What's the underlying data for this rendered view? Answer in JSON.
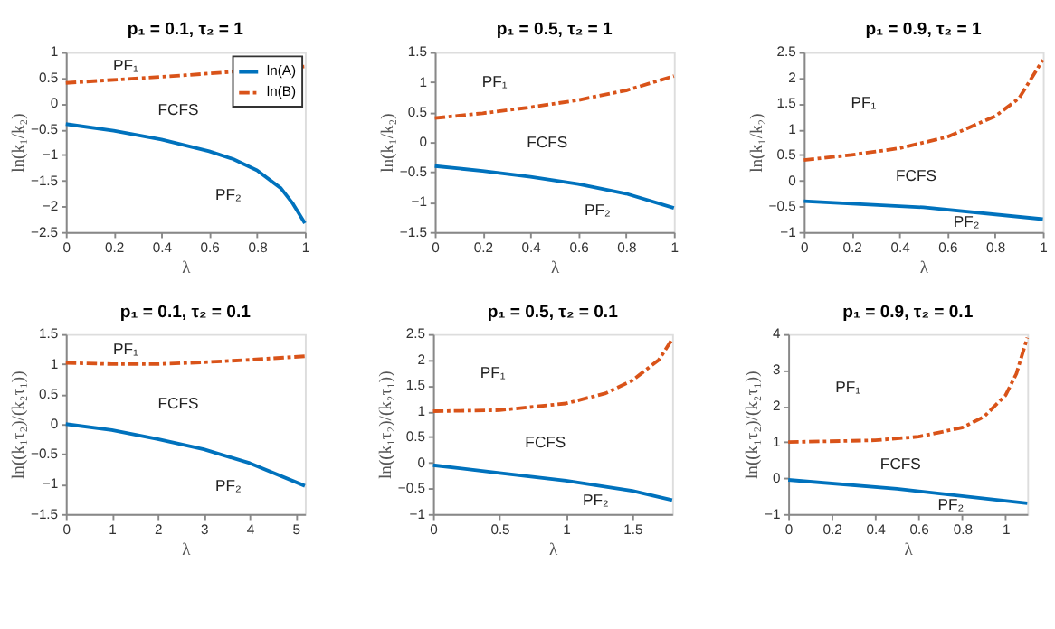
{
  "chart_data": [
    {
      "type": "line",
      "title": "p₁ = 0.1, τ₂ = 1",
      "xlabel": "λ",
      "ylabel": "ln(k₁/k₂)",
      "xlim": [
        0,
        1
      ],
      "xticks": [
        0,
        0.2,
        0.4,
        0.6,
        0.8,
        1
      ],
      "ylim": [
        -2.5,
        1
      ],
      "yticks": [
        -2.5,
        -2,
        -1.5,
        -1,
        -0.5,
        0,
        0.5,
        1
      ],
      "grid": false,
      "legend": "top right",
      "marker": "none",
      "series": [
        {
          "name": "ln(A)",
          "color": "#0072bd",
          "line_style": "solid",
          "x": [
            0,
            0.2,
            0.4,
            0.6,
            0.7,
            0.8,
            0.9,
            0.95,
            1
          ],
          "values": [
            -0.4,
            -0.53,
            -0.7,
            -0.93,
            -1.08,
            -1.3,
            -1.65,
            -1.95,
            -2.33
          ]
        },
        {
          "name": "ln(B)",
          "color": "#d95319",
          "line_style": "dashed",
          "x": [
            0,
            0.5,
            1
          ],
          "values": [
            0.4,
            0.55,
            0.72
          ]
        }
      ],
      "annotations": [
        "PF₁",
        "FCFS",
        "PF₂"
      ]
    },
    {
      "type": "line",
      "title": "p₁ = 0.5, τ₂ = 1",
      "xlabel": "λ",
      "ylabel": "ln(k₁/k₂)",
      "xlim": [
        0,
        1
      ],
      "xticks": [
        0,
        0.2,
        0.4,
        0.6,
        0.8,
        1
      ],
      "ylim": [
        -1.5,
        1.5
      ],
      "yticks": [
        -1.5,
        -1,
        -0.5,
        0,
        0.5,
        1,
        1.5
      ],
      "grid": false,
      "marker": "none",
      "series": [
        {
          "color": "#0072bd",
          "line_style": "solid",
          "x": [
            0,
            0.2,
            0.4,
            0.6,
            0.8,
            1
          ],
          "values": [
            -0.4,
            -0.48,
            -0.58,
            -0.7,
            -0.86,
            -1.1
          ]
        },
        {
          "color": "#d95319",
          "line_style": "dashed",
          "x": [
            0,
            0.2,
            0.4,
            0.6,
            0.8,
            1
          ],
          "values": [
            0.4,
            0.48,
            0.58,
            0.7,
            0.86,
            1.1
          ]
        }
      ],
      "annotations": [
        "PF₁",
        "FCFS",
        "PF₂"
      ]
    },
    {
      "type": "line",
      "title": "p₁ = 0.9, τ₂ = 1",
      "xlabel": "λ",
      "ylabel": "ln(k₁/k₂)",
      "xlim": [
        0,
        1
      ],
      "xticks": [
        0,
        0.2,
        0.4,
        0.6,
        0.8,
        1
      ],
      "ylim": [
        -1,
        2.5
      ],
      "yticks": [
        -1,
        -0.5,
        0,
        0.5,
        1,
        1.5,
        2,
        2.5
      ],
      "grid": false,
      "marker": "none",
      "series": [
        {
          "color": "#0072bd",
          "line_style": "solid",
          "x": [
            0,
            0.5,
            1
          ],
          "values": [
            -0.4,
            -0.52,
            -0.75
          ]
        },
        {
          "color": "#d95319",
          "line_style": "dashed",
          "x": [
            0,
            0.2,
            0.4,
            0.6,
            0.8,
            0.9,
            1
          ],
          "values": [
            0.4,
            0.5,
            0.63,
            0.85,
            1.25,
            1.6,
            2.35
          ]
        }
      ],
      "annotations": [
        "PF₁",
        "FCFS",
        "PF₂"
      ]
    },
    {
      "type": "line",
      "title": "p₁ = 0.1, τ₂ = 0.1",
      "xlabel": "λ",
      "ylabel": "ln((k₁τ₂)/(k₂τ₁))",
      "xlim": [
        0,
        5.2
      ],
      "xticks": [
        0,
        1,
        2,
        3,
        4,
        5
      ],
      "ylim": [
        -1.5,
        1.5
      ],
      "yticks": [
        -1.5,
        -1,
        -0.5,
        0,
        0.5,
        1,
        1.5
      ],
      "grid": false,
      "marker": "none",
      "series": [
        {
          "color": "#0072bd",
          "line_style": "solid",
          "x": [
            0,
            1,
            2,
            3,
            4,
            5.2
          ],
          "values": [
            0,
            -0.1,
            -0.25,
            -0.42,
            -0.65,
            -1.03
          ]
        },
        {
          "color": "#d95319",
          "line_style": "dashed",
          "x": [
            0,
            1,
            2,
            3,
            4,
            5.2
          ],
          "values": [
            1.02,
            1.0,
            1.0,
            1.03,
            1.07,
            1.13
          ]
        }
      ],
      "annotations": [
        "PF₁",
        "FCFS",
        "PF₂"
      ]
    },
    {
      "type": "line",
      "title": "p₁ = 0.5, τ₂ = 0.1",
      "xlabel": "λ",
      "ylabel": "ln((k₁τ₂)/(k₂τ₁))",
      "xlim": [
        0,
        1.8
      ],
      "xticks": [
        0,
        0.5,
        1,
        1.5
      ],
      "ylim": [
        -1,
        2.5
      ],
      "yticks": [
        -1,
        -0.5,
        0,
        0.5,
        1,
        1.5,
        2,
        2.5
      ],
      "grid": false,
      "marker": "none",
      "series": [
        {
          "color": "#0072bd",
          "line_style": "solid",
          "x": [
            0,
            0.5,
            1,
            1.5,
            1.8
          ],
          "values": [
            -0.05,
            -0.2,
            -0.35,
            -0.55,
            -0.73
          ]
        },
        {
          "color": "#d95319",
          "line_style": "dashed",
          "x": [
            0,
            0.5,
            1,
            1.3,
            1.5,
            1.7,
            1.8
          ],
          "values": [
            1,
            1.02,
            1.15,
            1.35,
            1.6,
            2.0,
            2.4
          ]
        }
      ],
      "annotations": [
        "PF₁",
        "FCFS",
        "PF₂"
      ]
    },
    {
      "type": "line",
      "title": "p₁ = 0.9, τ₂ = 0.1",
      "xlabel": "λ",
      "ylabel": "ln((k₁τ₂)/(k₂τ₁))",
      "xlim": [
        0,
        1.1
      ],
      "xticks": [
        0,
        0.2,
        0.4,
        0.6,
        0.8,
        1
      ],
      "ylim": [
        -1,
        4
      ],
      "yticks": [
        -1,
        0,
        1,
        2,
        3,
        4
      ],
      "grid": false,
      "marker": "none",
      "series": [
        {
          "color": "#0072bd",
          "line_style": "solid",
          "x": [
            0,
            0.5,
            1.1
          ],
          "values": [
            -0.05,
            -0.3,
            -0.7
          ]
        },
        {
          "color": "#d95319",
          "line_style": "dashed",
          "x": [
            0,
            0.4,
            0.6,
            0.8,
            0.9,
            1.0,
            1.05,
            1.1
          ],
          "values": [
            1,
            1.05,
            1.15,
            1.4,
            1.7,
            2.3,
            2.9,
            3.9
          ]
        }
      ],
      "annotations": [
        "PF₁",
        "FCFS",
        "PF₂"
      ]
    }
  ]
}
